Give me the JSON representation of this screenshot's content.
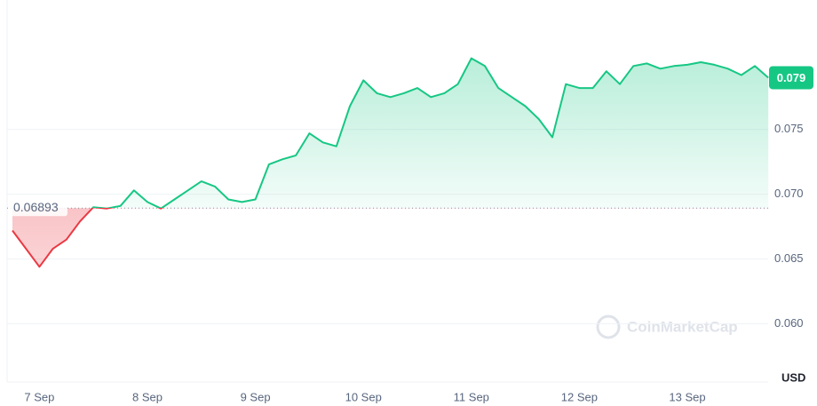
{
  "chart_data": {
    "type": "line",
    "categories": [
      null,
      null,
      "7 Sep",
      null,
      null,
      null,
      null,
      null,
      null,
      null,
      "8 Sep",
      null,
      null,
      null,
      null,
      null,
      null,
      null,
      "9 Sep",
      null,
      null,
      null,
      null,
      null,
      null,
      null,
      "10 Sep",
      null,
      null,
      null,
      null,
      null,
      null,
      null,
      "11 Sep",
      null,
      null,
      null,
      null,
      null,
      null,
      null,
      "12 Sep",
      null,
      null,
      null,
      null,
      null,
      null,
      null,
      "13 Sep",
      null,
      null,
      null,
      null,
      null,
      null
    ],
    "values": [
      0.0672,
      0.0658,
      0.0644,
      0.0658,
      0.0665,
      0.0679,
      0.069,
      0.0689,
      0.0691,
      0.0703,
      0.0694,
      0.0689,
      0.0696,
      0.0703,
      0.071,
      0.0706,
      0.0696,
      0.0694,
      0.0696,
      0.0723,
      0.0727,
      0.073,
      0.0747,
      0.074,
      0.0737,
      0.0768,
      0.0788,
      0.0778,
      0.0775,
      0.0778,
      0.0782,
      0.0775,
      0.0778,
      0.0785,
      0.0805,
      0.0799,
      0.0782,
      0.0775,
      0.0768,
      0.0758,
      0.0744,
      0.0785,
      0.0782,
      0.0782,
      0.0795,
      0.0785,
      0.0799,
      0.0801,
      0.0797,
      0.0799,
      0.08,
      0.0802,
      0.08,
      0.0797,
      0.0792,
      0.0799,
      0.079
    ],
    "up_color": "#16c784",
    "down_color": "#ea3943",
    "baseline": 0.06893,
    "current_price": 0.079,
    "ylim": [
      0.0555,
      0.085
    ],
    "yticks": [
      {
        "value": 0.06,
        "label": "0.060"
      },
      {
        "value": 0.065,
        "label": "0.065"
      },
      {
        "value": 0.07,
        "label": "0.070"
      },
      {
        "value": 0.075,
        "label": "0.075"
      }
    ],
    "y_unit": "USD",
    "watermark": "CoinMarketCap",
    "grid": true
  }
}
